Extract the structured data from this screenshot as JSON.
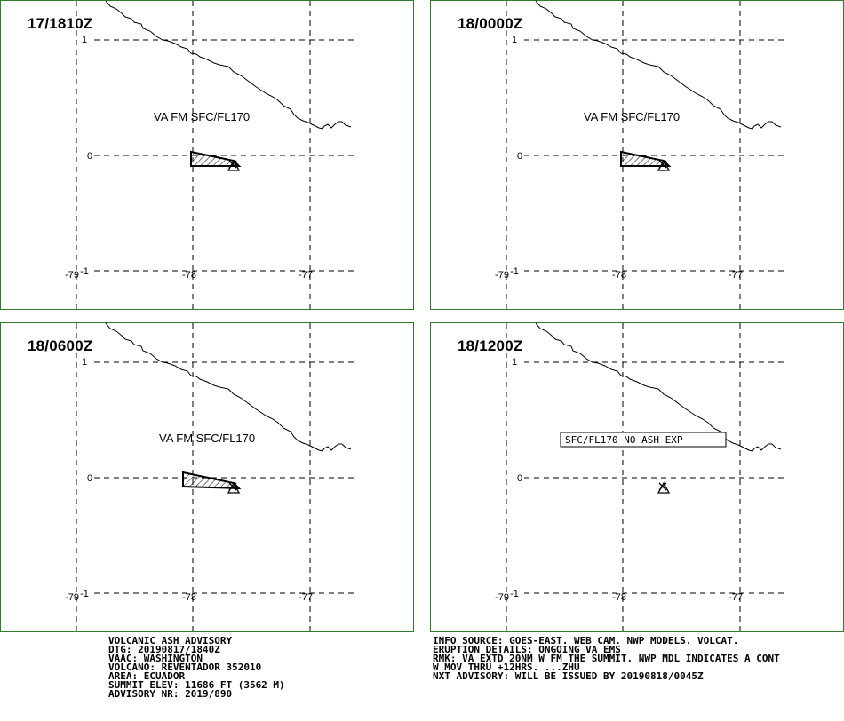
{
  "panels": [
    {
      "title": "17/1810Z",
      "label": "VA FM SFC/FL170",
      "kind": "ash"
    },
    {
      "title": "18/0000Z",
      "label": "VA FM SFC/FL170",
      "kind": "ash"
    },
    {
      "title": "18/0600Z",
      "label": "VA FM SFC/FL170",
      "kind": "ash"
    },
    {
      "title": "18/1200Z",
      "label": "SFC/FL170 NO ASH EXP",
      "kind": "boxed"
    }
  ],
  "axis": {
    "lat_labels": [
      "1",
      "0",
      "-1"
    ],
    "lon_labels": [
      "-79",
      "-78",
      "-77"
    ]
  },
  "footer_left": [
    "VOLCANIC ASH ADVISORY",
    "DTG: 20190817/1840Z",
    "VAAC: WASHINGTON",
    "VOLCANO: REVENTADOR 352010",
    "AREA: ECUADOR",
    "SUMMIT ELEV: 11686 FT (3562 M)",
    "ADVISORY NR: 2019/890"
  ],
  "footer_right": [
    "INFO SOURCE: GOES-EAST. WEB CAM. NWP MODELS. VOLCAT.",
    "ERUPTION DETAILS: ONGOING VA EMS",
    "RMK: VA EXTD 20NM W FM THE SUMMIT. NWP MDL INDICATES A CONT",
    "W MOV THRU +12HRS. ...ZHU",
    "NXT ADVISORY: WILL BE ISSUED BY 20190818/0045Z"
  ],
  "colors": {
    "panel_border": "#2e7d32",
    "ink": "#000000"
  }
}
